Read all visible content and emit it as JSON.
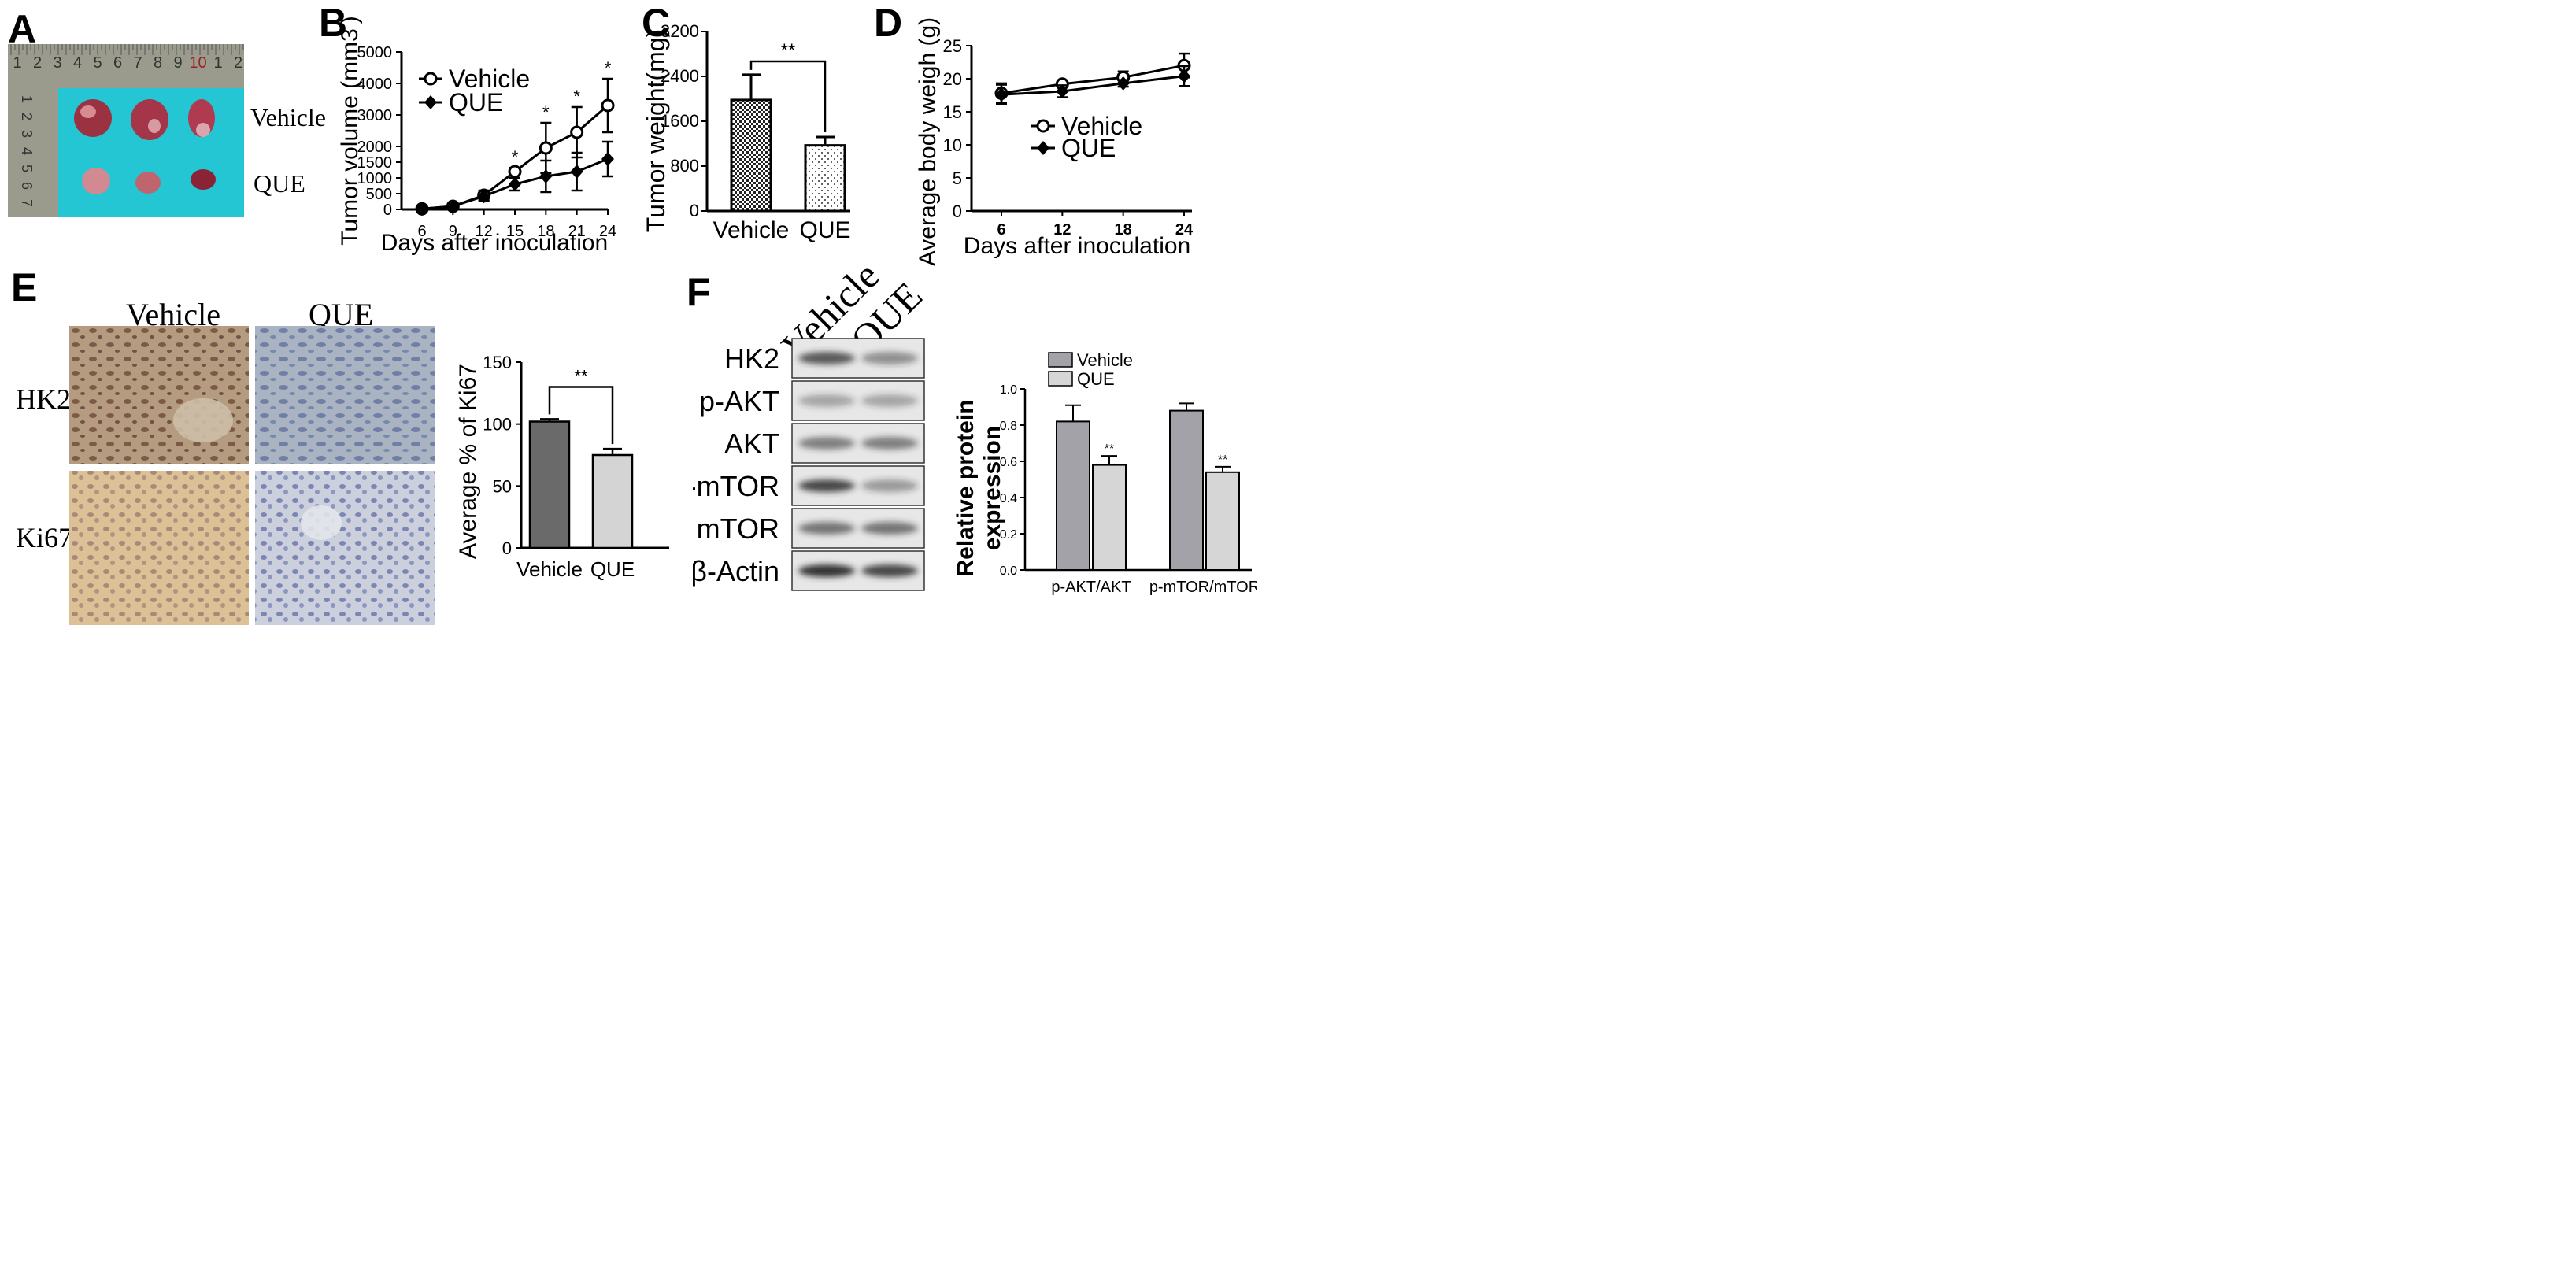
{
  "figure": {
    "panels": {
      "A": {
        "letter": "A",
        "ruler_top": [
          "1",
          "2",
          "3",
          "4",
          "5",
          "6",
          "7",
          "8",
          "9",
          "10",
          "1",
          "2"
        ],
        "ruler_left": [
          "1",
          "2",
          "3",
          "4",
          "5",
          "6",
          "7"
        ],
        "row_labels": [
          "Vehicle",
          "QUE"
        ]
      },
      "E": {
        "letter": "E",
        "col_labels": [
          "Vehicle",
          "QUE"
        ],
        "row_labels": [
          "HK2",
          "Ki67"
        ]
      },
      "F": {
        "letter": "F",
        "col_labels": [
          "Vehicle",
          "QUE"
        ],
        "blot_labels": [
          "HK2",
          "p-AKT",
          "AKT",
          "p-mTOR",
          "mTOR",
          "β-Actin"
        ]
      }
    }
  },
  "chart_data": [
    {
      "id": "B",
      "letter": "B",
      "type": "line",
      "ylabel": "Tumor volume (mm3 )",
      "xlabel": "Days after inoculation",
      "x": [
        6,
        9,
        12,
        15,
        18,
        21,
        24
      ],
      "yticks": [
        "0",
        "500",
        "1000",
        "1500",
        "2000",
        "3000",
        "4000",
        "5000"
      ],
      "ylim": [
        0,
        5000
      ],
      "series": [
        {
          "name": "Vehicle",
          "marker": "circle",
          "values": [
            20,
            100,
            450,
            1200,
            1950,
            2450,
            3300
          ],
          "err": [
            10,
            30,
            150,
            120,
            800,
            800,
            850
          ]
        },
        {
          "name": "QUE",
          "marker": "diamond",
          "values": [
            20,
            100,
            420,
            800,
            1050,
            1200,
            1600
          ],
          "err": [
            10,
            30,
            150,
            200,
            500,
            600,
            550
          ]
        }
      ],
      "significance": [
        "*",
        "*",
        "*",
        "*"
      ],
      "legend": "top-left"
    },
    {
      "id": "C",
      "letter": "C",
      "type": "bar",
      "ylabel": "Tumor weight(mg)",
      "categories": [
        "Vehicle",
        "QUE"
      ],
      "values": [
        1980,
        1170
      ],
      "err": [
        450,
        150
      ],
      "yticks": [
        "0",
        "800",
        "1600",
        "2400",
        "3200"
      ],
      "ylim": [
        0,
        3200
      ],
      "significance": "**"
    },
    {
      "id": "D",
      "letter": "D",
      "type": "line",
      "ylabel": "Average body weigh (g)",
      "xlabel": "Days after inoculation",
      "x": [
        6,
        12,
        18,
        24
      ],
      "yticks": [
        "0",
        "5",
        "10",
        "15",
        "20",
        "25"
      ],
      "ylim": [
        0,
        25
      ],
      "series": [
        {
          "name": "Vehicle",
          "marker": "circle",
          "values": [
            17.8,
            19.2,
            20.2,
            22.0
          ],
          "err": [
            1.5,
            0.4,
            0.9,
            1.8
          ]
        },
        {
          "name": "QUE",
          "marker": "diamond",
          "values": [
            17.6,
            18.1,
            19.3,
            20.4
          ],
          "err": [
            1.5,
            0.9,
            0.5,
            1.5
          ]
        }
      ],
      "legend": "center-right"
    },
    {
      "id": "E-bar",
      "type": "bar",
      "ylabel": "Average % of Ki67",
      "categories": [
        "Vehicle",
        "QUE"
      ],
      "values": [
        102,
        75
      ],
      "err": [
        2,
        5
      ],
      "yticks": [
        "0",
        "50",
        "100",
        "150"
      ],
      "ylim": [
        0,
        150
      ],
      "significance": "**"
    },
    {
      "id": "F-bar",
      "type": "bar",
      "ylabel_line1": "Relative  protein",
      "ylabel_line2": "expression",
      "categories": [
        "p-AKT/AKT",
        "p-mTOR/mTOR"
      ],
      "series": [
        {
          "name": "Vehicle",
          "values": [
            0.82,
            0.88
          ],
          "err": [
            0.09,
            0.04
          ]
        },
        {
          "name": "QUE",
          "values": [
            0.58,
            0.54
          ],
          "err": [
            0.05,
            0.03
          ]
        }
      ],
      "yticks": [
        "0.0",
        "0.2",
        "0.4",
        "0.6",
        "0.8",
        "1.0"
      ],
      "ylim": [
        0,
        1.0
      ],
      "significance": [
        "**",
        "**"
      ],
      "legend": "top-left"
    }
  ],
  "colors": {
    "photo_bg": "#23c6d2",
    "ruler": "#9b9b8d",
    "hk2_stain": "#a88a6e",
    "ki67_stain": "#d8b98e",
    "que_stain": "#a9b3cc",
    "bar_dark": "#6a6a6a",
    "bar_light": "#d4d4d4",
    "f_dark": "#a2a2a8",
    "f_light": "#d6d6d6"
  }
}
